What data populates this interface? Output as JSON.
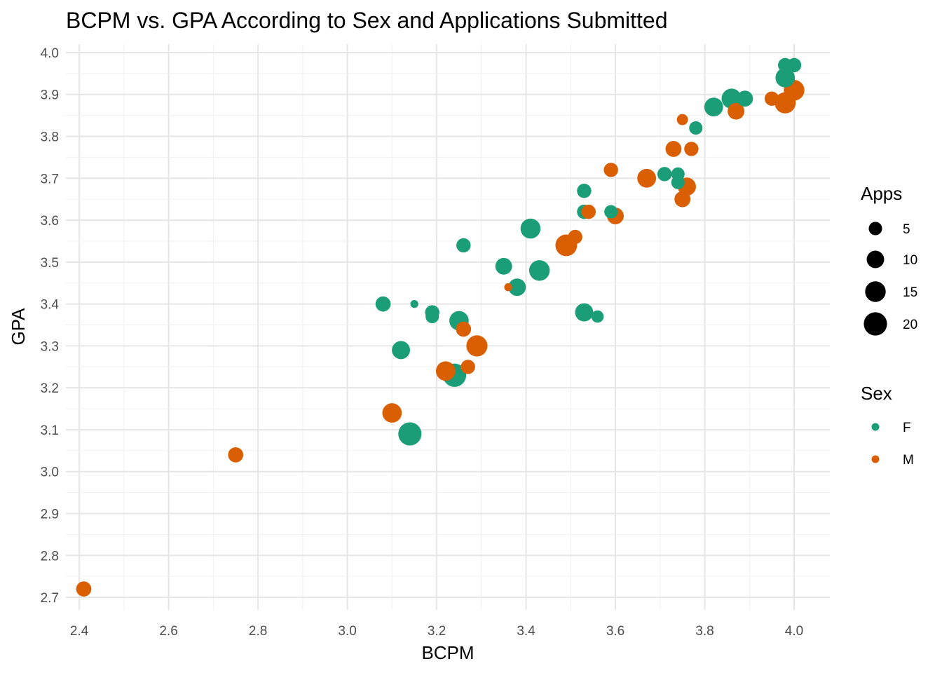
{
  "chart_data": {
    "type": "scatter",
    "title": "BCPM vs. GPA According to Sex and Applications Submitted",
    "xlabel": "BCPM",
    "ylabel": "GPA",
    "xlim": [
      2.37,
      4.08
    ],
    "ylim": [
      2.67,
      4.02
    ],
    "x_ticks": [
      "2.4",
      "2.6",
      "2.8",
      "3.0",
      "3.2",
      "3.4",
      "3.6",
      "3.8",
      "4.0"
    ],
    "y_ticks": [
      "2.7",
      "2.8",
      "2.9",
      "3.0",
      "3.1",
      "3.2",
      "3.3",
      "3.4",
      "3.5",
      "3.6",
      "3.7",
      "3.8",
      "3.9",
      "4.0"
    ],
    "grid": true,
    "legend_position": "right",
    "size_legend": {
      "title": "Apps",
      "entries": [
        {
          "label": "5",
          "value": 5
        },
        {
          "label": "10",
          "value": 10
        },
        {
          "label": "15",
          "value": 15
        },
        {
          "label": "20",
          "value": 20
        }
      ]
    },
    "color_legend": {
      "title": "Sex",
      "entries": [
        {
          "label": "F",
          "color": "#1b9e77"
        },
        {
          "label": "M",
          "color": "#d95f02"
        }
      ]
    },
    "series": [
      {
        "name": "F",
        "color": "#1b9e77",
        "points": [
          {
            "x": 3.15,
            "y": 3.4,
            "apps": 1
          },
          {
            "x": 3.08,
            "y": 3.4,
            "apps": 7
          },
          {
            "x": 3.12,
            "y": 3.29,
            "apps": 11
          },
          {
            "x": 3.14,
            "y": 3.09,
            "apps": 20
          },
          {
            "x": 3.19,
            "y": 3.38,
            "apps": 6
          },
          {
            "x": 3.19,
            "y": 3.37,
            "apps": 5
          },
          {
            "x": 3.24,
            "y": 3.23,
            "apps": 20
          },
          {
            "x": 3.25,
            "y": 3.36,
            "apps": 13
          },
          {
            "x": 3.26,
            "y": 3.54,
            "apps": 6
          },
          {
            "x": 3.35,
            "y": 3.49,
            "apps": 9
          },
          {
            "x": 3.38,
            "y": 3.44,
            "apps": 10
          },
          {
            "x": 3.41,
            "y": 3.58,
            "apps": 14
          },
          {
            "x": 3.43,
            "y": 3.48,
            "apps": 15
          },
          {
            "x": 3.53,
            "y": 3.67,
            "apps": 6
          },
          {
            "x": 3.53,
            "y": 3.62,
            "apps": 6
          },
          {
            "x": 3.53,
            "y": 3.38,
            "apps": 11
          },
          {
            "x": 3.56,
            "y": 3.37,
            "apps": 4
          },
          {
            "x": 3.59,
            "y": 3.62,
            "apps": 5
          },
          {
            "x": 3.71,
            "y": 3.71,
            "apps": 6
          },
          {
            "x": 3.74,
            "y": 3.71,
            "apps": 5
          },
          {
            "x": 3.74,
            "y": 3.69,
            "apps": 5
          },
          {
            "x": 3.78,
            "y": 3.82,
            "apps": 5
          },
          {
            "x": 3.82,
            "y": 3.87,
            "apps": 12
          },
          {
            "x": 3.86,
            "y": 3.89,
            "apps": 14
          },
          {
            "x": 3.89,
            "y": 3.89,
            "apps": 8
          },
          {
            "x": 3.98,
            "y": 3.97,
            "apps": 6
          },
          {
            "x": 4.0,
            "y": 3.97,
            "apps": 6
          },
          {
            "x": 3.98,
            "y": 3.94,
            "apps": 13
          }
        ]
      },
      {
        "name": "M",
        "color": "#d95f02",
        "points": [
          {
            "x": 2.41,
            "y": 2.72,
            "apps": 7
          },
          {
            "x": 2.75,
            "y": 3.04,
            "apps": 7
          },
          {
            "x": 3.1,
            "y": 3.14,
            "apps": 13
          },
          {
            "x": 3.22,
            "y": 3.24,
            "apps": 13
          },
          {
            "x": 3.26,
            "y": 3.34,
            "apps": 7
          },
          {
            "x": 3.27,
            "y": 3.25,
            "apps": 6
          },
          {
            "x": 3.29,
            "y": 3.3,
            "apps": 16
          },
          {
            "x": 3.36,
            "y": 3.44,
            "apps": 1
          },
          {
            "x": 3.49,
            "y": 3.54,
            "apps": 17
          },
          {
            "x": 3.51,
            "y": 3.56,
            "apps": 6
          },
          {
            "x": 3.54,
            "y": 3.62,
            "apps": 6
          },
          {
            "x": 3.59,
            "y": 3.72,
            "apps": 6
          },
          {
            "x": 3.6,
            "y": 3.61,
            "apps": 9
          },
          {
            "x": 3.67,
            "y": 3.7,
            "apps": 12
          },
          {
            "x": 3.73,
            "y": 3.77,
            "apps": 8
          },
          {
            "x": 3.75,
            "y": 3.84,
            "apps": 3
          },
          {
            "x": 3.76,
            "y": 3.68,
            "apps": 11
          },
          {
            "x": 3.75,
            "y": 3.65,
            "apps": 8
          },
          {
            "x": 3.77,
            "y": 3.77,
            "apps": 6
          },
          {
            "x": 3.87,
            "y": 3.86,
            "apps": 9
          },
          {
            "x": 3.95,
            "y": 3.89,
            "apps": 6
          },
          {
            "x": 3.98,
            "y": 3.88,
            "apps": 16
          },
          {
            "x": 4.0,
            "y": 3.91,
            "apps": 15
          }
        ]
      }
    ]
  }
}
